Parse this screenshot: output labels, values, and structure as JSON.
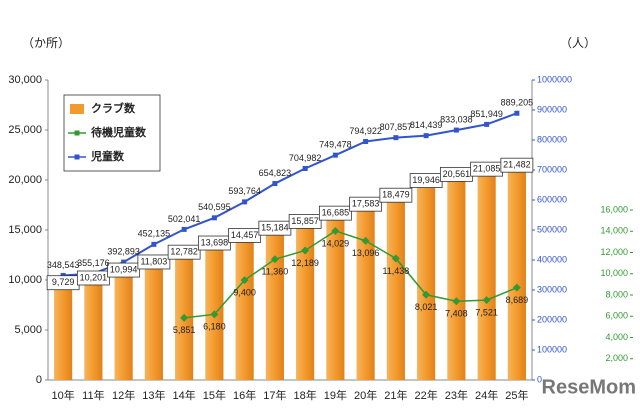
{
  "chart_data": {
    "type": "bar",
    "ylabel": "（か所）",
    "y2label": "（人）",
    "watermark": "ReseMom",
    "categories": [
      "10年",
      "11年",
      "12年",
      "13年",
      "14年",
      "15年",
      "16年",
      "17年",
      "18年",
      "19年",
      "20年",
      "21年",
      "22年",
      "23年",
      "24年",
      "25年"
    ],
    "ylim": [
      0,
      30000
    ],
    "yticks": [
      0,
      {
        "value": 5000,
        "label": "5,000"
      },
      {
        "value": 10000,
        "label": "10,000"
      },
      {
        "value": 15000,
        "label": "15,000"
      },
      {
        "value": 20000,
        "label": "20,000"
      },
      {
        "value": 25000,
        "label": "25,000"
      },
      {
        "value": 30000,
        "label": "30,000"
      }
    ],
    "y2lim": [
      0,
      1000000
    ],
    "y2ticks": [
      0,
      100000,
      200000,
      300000,
      400000,
      500000,
      600000,
      700000,
      800000,
      900000,
      1000000
    ],
    "y3lim": [
      0,
      16000
    ],
    "y3ticks": [
      {
        "value": 2000,
        "label": "2,000"
      },
      {
        "value": 4000,
        "label": "4,000"
      },
      {
        "value": 6000,
        "label": "6,000"
      },
      {
        "value": 8000,
        "label": "8,000"
      },
      {
        "value": 10000,
        "label": "10,000"
      },
      {
        "value": 12000,
        "label": "12,000"
      },
      {
        "value": 14000,
        "label": "14,000"
      },
      {
        "value": 16000,
        "label": "16,000"
      }
    ],
    "legend": "upper left",
    "series": [
      {
        "name": "クラブ数",
        "type": "bar",
        "color": "#f39a2e",
        "axis": "y",
        "values": [
          9729,
          10201,
          10994,
          11803,
          12782,
          13698,
          14457,
          15184,
          15857,
          16685,
          17583,
          18479,
          19946,
          20561,
          21085,
          21482
        ],
        "value_labels": [
          "9,729",
          "10,201",
          "10,994",
          "11,803",
          "12,782",
          "13,698",
          "14,457",
          "15,184",
          "15,857",
          "16,685",
          "17,583",
          "18,479",
          "19,946",
          "20,561",
          "21,085",
          "21,482"
        ]
      },
      {
        "name": "待機児童数",
        "type": "line",
        "color": "#339933",
        "axis": "y3",
        "values": [
          null,
          null,
          null,
          null,
          5851,
          6180,
          9400,
          11360,
          12189,
          14029,
          13096,
          11438,
          8021,
          7408,
          7521,
          8689
        ],
        "value_labels": [
          null,
          null,
          null,
          null,
          "5,851",
          "6,180",
          "9,400",
          "11,360",
          "12,189",
          "14,029",
          "13,096",
          "11,438",
          "8,021",
          "7,408",
          "7,521",
          "8,689"
        ]
      },
      {
        "name": "児童数",
        "type": "line",
        "color": "#3355cc",
        "axis": "y2",
        "values": [
          348543,
          355176,
          392893,
          452135,
          502041,
          540595,
          593764,
          654823,
          704982,
          749478,
          794922,
          807857,
          814439,
          833038,
          851949,
          889205
        ],
        "value_labels": [
          "348,543",
          "355,176",
          "392,893",
          "452,135",
          "502,041",
          "540,595",
          "593,764",
          "654,823",
          "704,982",
          "749,478",
          "794,922",
          "807,857",
          "814,439",
          "833,038",
          "851,949",
          "889,205"
        ]
      }
    ]
  }
}
